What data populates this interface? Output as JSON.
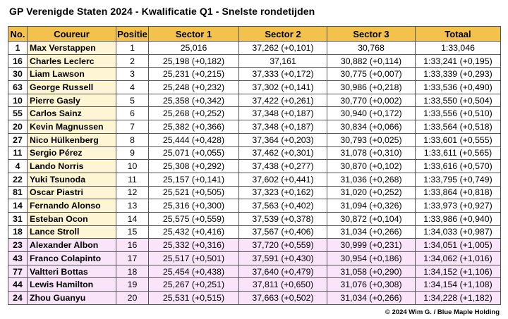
{
  "title": "GP Verenigde Staten 2024 - Kwalificatie Q1 - Snelste rondetijden",
  "headers": [
    "No.",
    "Coureur",
    "Positie",
    "Sector 1",
    "Sector 2",
    "Sector 3",
    "Totaal"
  ],
  "rows": [
    {
      "no": "1",
      "driver": "Max Verstappen",
      "pos": "1",
      "s1": "25,016",
      "s2": "37,262  (+0,101)",
      "s3": "30,768",
      "total": "1:33,046",
      "eliminated": false
    },
    {
      "no": "16",
      "driver": "Charles Leclerc",
      "pos": "2",
      "s1": "25,198  (+0,182)",
      "s2": "37,161",
      "s3": "30,882  (+0,114)",
      "total": "1:33,241  (+0,195)",
      "eliminated": false
    },
    {
      "no": "30",
      "driver": "Liam Lawson",
      "pos": "3",
      "s1": "25,231  (+0,215)",
      "s2": "37,333  (+0,172)",
      "s3": "30,775  (+0,007)",
      "total": "1:33,339  (+0,293)",
      "eliminated": false
    },
    {
      "no": "63",
      "driver": "George Russell",
      "pos": "4",
      "s1": "25,248  (+0,232)",
      "s2": "37,302  (+0,141)",
      "s3": "30,986  (+0,218)",
      "total": "1:33,536  (+0,490)",
      "eliminated": false
    },
    {
      "no": "10",
      "driver": "Pierre Gasly",
      "pos": "5",
      "s1": "25,358  (+0,342)",
      "s2": "37,422  (+0,261)",
      "s3": "30,770  (+0,002)",
      "total": "1:33,550  (+0,504)",
      "eliminated": false
    },
    {
      "no": "55",
      "driver": "Carlos Sainz",
      "pos": "6",
      "s1": "25,268  (+0,252)",
      "s2": "37,348  (+0,187)",
      "s3": "30,940  (+0,172)",
      "total": "1:33,556  (+0,510)",
      "eliminated": false
    },
    {
      "no": "20",
      "driver": "Kevin Magnussen",
      "pos": "7",
      "s1": "25,382  (+0,366)",
      "s2": "37,348  (+0,187)",
      "s3": "30,834  (+0,066)",
      "total": "1:33,564  (+0,518)",
      "eliminated": false
    },
    {
      "no": "27",
      "driver": "Nico Hülkenberg",
      "pos": "8",
      "s1": "25,444  (+0,428)",
      "s2": "37,364  (+0,203)",
      "s3": "30,793  (+0,025)",
      "total": "1:33,601  (+0,555)",
      "eliminated": false
    },
    {
      "no": "11",
      "driver": "Sergio Pérez",
      "pos": "9",
      "s1": "25,071  (+0,055)",
      "s2": "37,462  (+0,301)",
      "s3": "31,078  (+0,310)",
      "total": "1:33,611  (+0,565)",
      "eliminated": false
    },
    {
      "no": "4",
      "driver": "Lando Norris",
      "pos": "10",
      "s1": "25,308  (+0,292)",
      "s2": "37,438  (+0,277)",
      "s3": "30,870  (+0,102)",
      "total": "1:33,616  (+0,570)",
      "eliminated": false
    },
    {
      "no": "22",
      "driver": "Yuki Tsunoda",
      "pos": "11",
      "s1": "25,157  (+0,141)",
      "s2": "37,602  (+0,441)",
      "s3": "31,036  (+0,268)",
      "total": "1:33,795  (+0,749)",
      "eliminated": false
    },
    {
      "no": "81",
      "driver": "Oscar Piastri",
      "pos": "12",
      "s1": "25,521  (+0,505)",
      "s2": "37,323  (+0,162)",
      "s3": "31,020  (+0,252)",
      "total": "1:33,864  (+0,818)",
      "eliminated": false
    },
    {
      "no": "14",
      "driver": "Fernando Alonso",
      "pos": "13",
      "s1": "25,316  (+0,300)",
      "s2": "37,563  (+0,402)",
      "s3": "31,094  (+0,326)",
      "total": "1:33,973  (+0,927)",
      "eliminated": false
    },
    {
      "no": "31",
      "driver": "Esteban Ocon",
      "pos": "14",
      "s1": "25,575  (+0,559)",
      "s2": "37,539  (+0,378)",
      "s3": "30,872  (+0,104)",
      "total": "1:33,986  (+0,940)",
      "eliminated": false
    },
    {
      "no": "18",
      "driver": "Lance Stroll",
      "pos": "15",
      "s1": "25,432  (+0,416)",
      "s2": "37,567  (+0,406)",
      "s3": "31,034  (+0,266)",
      "total": "1:34,033  (+0,987)",
      "eliminated": false
    },
    {
      "no": "23",
      "driver": "Alexander Albon",
      "pos": "16",
      "s1": "25,332  (+0,316)",
      "s2": "37,720  (+0,559)",
      "s3": "30,999  (+0,231)",
      "total": "1:34,051  (+1,005)",
      "eliminated": true
    },
    {
      "no": "43",
      "driver": "Franco Colapinto",
      "pos": "17",
      "s1": "25,517  (+0,501)",
      "s2": "37,591  (+0,430)",
      "s3": "30,954  (+0,186)",
      "total": "1:34,062  (+1,016)",
      "eliminated": true
    },
    {
      "no": "77",
      "driver": "Valtteri Bottas",
      "pos": "18",
      "s1": "25,454  (+0,438)",
      "s2": "37,640  (+0,479)",
      "s3": "31,058  (+0,290)",
      "total": "1:34,152  (+1,106)",
      "eliminated": true
    },
    {
      "no": "44",
      "driver": "Lewis Hamilton",
      "pos": "19",
      "s1": "25,267  (+0,251)",
      "s2": "37,811  (+0,650)",
      "s3": "31,076  (+0,308)",
      "total": "1:34,154  (+1,108)",
      "eliminated": true
    },
    {
      "no": "24",
      "driver": "Zhou Guanyu",
      "pos": "20",
      "s1": "25,531  (+0,515)",
      "s2": "37,663  (+0,502)",
      "s3": "31,034  (+0,266)",
      "total": "1:34,228  (+1,182)",
      "eliminated": true
    }
  ],
  "footer": "© 2024 Wim G. / Blue Maple Holding",
  "colors": {
    "header": "#f3c24c",
    "qualified_name": "#fdf5d3",
    "eliminated": "#f9e4f9"
  }
}
